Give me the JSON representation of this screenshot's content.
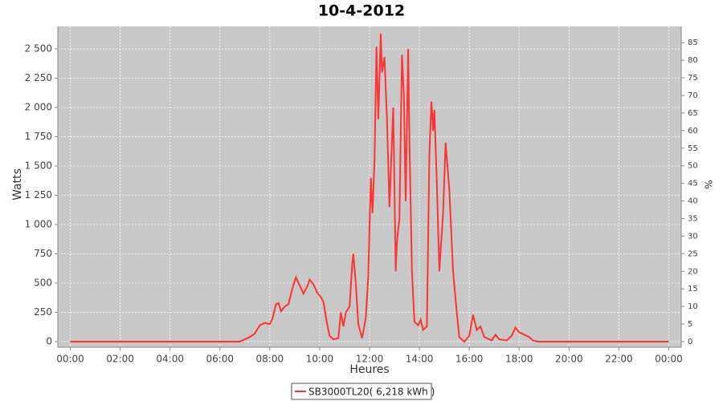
{
  "chart_data": {
    "type": "line",
    "title": "10-4-2012",
    "x_label": "Heures",
    "y_label": "Watts",
    "y2_label": "%",
    "x": [
      0,
      6.8,
      7.0,
      7.2,
      7.4,
      7.6,
      7.8,
      8.0,
      8.1,
      8.25,
      8.35,
      8.45,
      8.6,
      8.75,
      8.9,
      9.0,
      9.05,
      9.2,
      9.35,
      9.5,
      9.6,
      9.75,
      9.9,
      10.05,
      10.15,
      10.3,
      10.4,
      10.55,
      10.75,
      10.85,
      10.95,
      11.05,
      11.2,
      11.3,
      11.35,
      11.45,
      11.55,
      11.7,
      11.85,
      11.95,
      12.05,
      12.12,
      12.2,
      12.28,
      12.35,
      12.45,
      12.5,
      12.6,
      12.7,
      12.8,
      12.95,
      13.05,
      13.1,
      13.2,
      13.3,
      13.38,
      13.45,
      13.55,
      13.6,
      13.7,
      13.8,
      13.95,
      14.05,
      14.15,
      14.3,
      14.4,
      14.48,
      14.55,
      14.6,
      14.7,
      14.8,
      14.95,
      15.05,
      15.2,
      15.35,
      15.5,
      15.6,
      15.8,
      16.0,
      16.15,
      16.3,
      16.45,
      16.6,
      16.9,
      17.05,
      17.2,
      17.5,
      17.7,
      17.85,
      18.0,
      18.2,
      18.4,
      18.55,
      18.75,
      24
    ],
    "series": [
      {
        "name": "SB3000TL20( 6,218 kWh )",
        "color": "#ff3333",
        "values": [
          0,
          0,
          20,
          40,
          70,
          140,
          160,
          150,
          190,
          320,
          330,
          260,
          300,
          320,
          450,
          520,
          550,
          480,
          410,
          470,
          530,
          490,
          420,
          380,
          340,
          150,
          50,
          20,
          30,
          250,
          130,
          250,
          300,
          650,
          750,
          500,
          150,
          30,
          200,
          550,
          1400,
          1100,
          1550,
          2520,
          1900,
          2630,
          2300,
          2430,
          1900,
          1150,
          2000,
          600,
          850,
          1050,
          2450,
          2100,
          1200,
          2500,
          1700,
          600,
          170,
          140,
          190,
          100,
          130,
          1600,
          2050,
          1800,
          1980,
          1350,
          600,
          1100,
          1700,
          1300,
          600,
          250,
          40,
          0,
          50,
          230,
          100,
          130,
          40,
          10,
          60,
          20,
          10,
          50,
          120,
          80,
          60,
          40,
          10,
          0,
          0
        ]
      }
    ],
    "xlim": [
      -0.5,
      24.5
    ],
    "xticks": [
      {
        "value": 0,
        "label": "00:00"
      },
      {
        "value": 2,
        "label": "02:00"
      },
      {
        "value": 4,
        "label": "04:00"
      },
      {
        "value": 6,
        "label": "06:00"
      },
      {
        "value": 8,
        "label": "08:00"
      },
      {
        "value": 10,
        "label": "10:00"
      },
      {
        "value": 12,
        "label": "12:00"
      },
      {
        "value": 14,
        "label": "14:00"
      },
      {
        "value": 16,
        "label": "16:00"
      },
      {
        "value": 18,
        "label": "18:00"
      },
      {
        "value": 20,
        "label": "20:00"
      },
      {
        "value": 22,
        "label": "22:00"
      },
      {
        "value": 24,
        "label": "00:00"
      }
    ],
    "ylim": [
      -48,
      2692
    ],
    "yticks": [
      0,
      250,
      500,
      750,
      {
        "value": 1000,
        "label": "1 000"
      },
      {
        "value": 1250,
        "label": "1 250"
      },
      {
        "value": 1500,
        "label": "1 500"
      },
      {
        "value": 1750,
        "label": "1 750"
      },
      {
        "value": 2000,
        "label": "2 000"
      },
      {
        "value": 2250,
        "label": "2 250"
      },
      {
        "value": 2500,
        "label": "2 500"
      }
    ],
    "y2lim": [
      -1.6,
      89.6
    ],
    "y2ticks": [
      0,
      5,
      10,
      15,
      20,
      25,
      30,
      35,
      40,
      45,
      50,
      55,
      60,
      65,
      70,
      75,
      80,
      85
    ],
    "grid": true,
    "legend": "bottom"
  }
}
